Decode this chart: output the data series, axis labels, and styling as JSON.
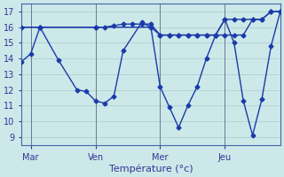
{
  "background_color": "#cce8e8",
  "grid_color": "#aacccc",
  "line_color": "#1a3aaa",
  "marker": "D",
  "marker_size": 2.5,
  "line_width": 1.0,
  "xlabel": "Température (°c)",
  "xlabel_fontsize": 8,
  "tick_fontsize": 7,
  "ylim": [
    8.5,
    17.5
  ],
  "yticks": [
    9,
    10,
    11,
    12,
    13,
    14,
    15,
    16,
    17
  ],
  "xlim": [
    0,
    28
  ],
  "day_labels": [
    "Mar",
    "Ven",
    "Mer",
    "Jeu"
  ],
  "day_positions": [
    1,
    8,
    15,
    22
  ],
  "vline_positions": [
    1,
    8,
    15,
    22
  ],
  "line1_x": [
    0,
    1,
    2,
    4,
    6,
    7,
    8,
    9,
    10,
    11,
    13,
    14,
    15,
    16,
    17,
    18,
    19,
    20,
    21,
    22,
    23,
    24,
    25,
    26,
    27,
    28
  ],
  "line1_y": [
    13.8,
    14.3,
    16.0,
    13.9,
    12.0,
    11.9,
    11.3,
    11.15,
    11.6,
    14.5,
    16.3,
    16.0,
    12.2,
    10.9,
    9.6,
    11.0,
    12.2,
    14.0,
    15.5,
    16.5,
    15.0,
    11.3,
    9.1,
    11.4,
    14.8,
    17.0
  ],
  "line2_x": [
    0,
    2,
    8,
    14,
    15,
    16,
    17,
    18,
    19,
    20,
    21,
    22,
    23,
    24,
    25,
    26,
    27,
    28
  ],
  "line2_y": [
    16.0,
    16.0,
    16.0,
    16.0,
    15.5,
    15.5,
    15.5,
    15.5,
    15.5,
    15.5,
    15.5,
    15.5,
    15.5,
    15.5,
    16.5,
    16.5,
    17.0,
    17.0
  ],
  "line3_x": [
    0,
    2,
    8,
    9,
    10,
    11,
    12,
    13,
    14,
    15,
    16,
    17,
    18,
    19,
    20,
    21,
    22,
    23,
    24,
    25,
    26,
    27,
    28
  ],
  "line3_y": [
    16.0,
    16.0,
    16.0,
    16.0,
    16.1,
    16.2,
    16.2,
    16.2,
    16.2,
    15.5,
    15.5,
    15.5,
    15.5,
    15.5,
    15.5,
    15.5,
    16.5,
    16.5,
    16.5,
    16.5,
    16.5,
    17.0,
    17.0
  ]
}
